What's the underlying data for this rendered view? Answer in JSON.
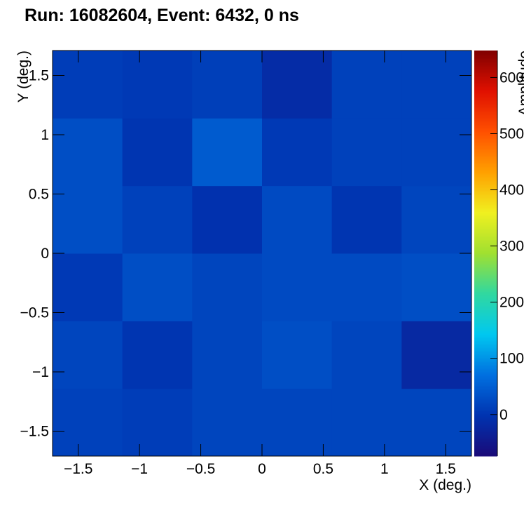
{
  "chart_data": {
    "type": "heatmap",
    "title": "Run: 16082604, Event: 6432, 0 ns",
    "x_label": "X (deg.)",
    "y_label": "Y (deg.)",
    "z_label": "Amplitude",
    "xbins": [
      -1.71,
      -1.14,
      -0.57,
      0,
      0.57,
      1.14,
      1.71
    ],
    "ybins": [
      -1.71,
      -1.14,
      -0.57,
      0,
      0.57,
      1.14,
      1.71
    ],
    "z": [
      [
        15,
        10,
        20,
        20,
        20,
        20
      ],
      [
        20,
        0,
        20,
        30,
        20,
        -20
      ],
      [
        5,
        30,
        20,
        25,
        25,
        30
      ],
      [
        30,
        15,
        -5,
        25,
        0,
        20
      ],
      [
        30,
        0,
        45,
        5,
        15,
        15
      ],
      [
        10,
        5,
        12,
        -15,
        15,
        15
      ]
    ],
    "xlim": [
      -1.71,
      1.71
    ],
    "ylim": [
      -1.71,
      1.71
    ],
    "zlim": [
      -74,
      648
    ],
    "xticks": [
      {
        "value": -1.5,
        "label": "−1.5"
      },
      {
        "value": -1,
        "label": "−1"
      },
      {
        "value": -0.5,
        "label": "−0.5"
      },
      0,
      0.5,
      1,
      1.5
    ],
    "yticks": [
      {
        "value": -1.5,
        "label": "−1.5"
      },
      {
        "value": -1,
        "label": "−1"
      },
      {
        "value": -0.5,
        "label": "−0.5"
      },
      0,
      0.5,
      1,
      1.5
    ],
    "zticks": [
      0,
      100,
      200,
      300,
      400,
      500,
      600
    ],
    "palette": [
      "#1a0a78",
      "#0033b0",
      "#0070e0",
      "#00c8f0",
      "#30d8a0",
      "#a0e030",
      "#f0f020",
      "#ffa000",
      "#ff5000",
      "#e01000",
      "#800000"
    ]
  }
}
